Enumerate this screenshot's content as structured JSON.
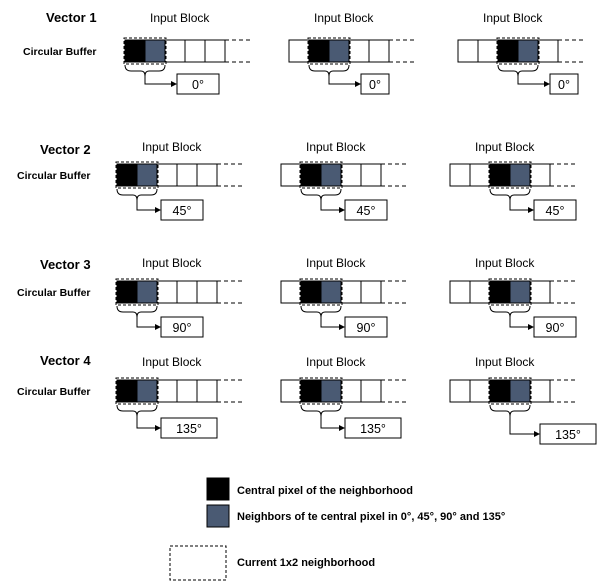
{
  "colors": {
    "center": "#000000",
    "neighbor": "#4a5a73",
    "empty": "#ffffff"
  },
  "circular_buffer_label": "Circular Buffer",
  "input_block_label": "Input Block",
  "rows": [
    {
      "vector_label": "Vector 1",
      "angle": "0°"
    },
    {
      "vector_label": "Vector 2",
      "angle": "45°"
    },
    {
      "vector_label": "Vector 3",
      "angle": "90°"
    },
    {
      "vector_label": "Vector 4",
      "angle": "135°"
    }
  ],
  "panels": [
    {
      "center_position": 0
    },
    {
      "center_position": 1
    },
    {
      "center_position": 2
    }
  ],
  "legend": {
    "central_pixel": "Central pixel of the neighborhood",
    "neighbors": "Neighbors of te central pixel in 0°, 45°, 90° and 135°",
    "current_neighborhood": "Current 1x2 neighborhood"
  }
}
